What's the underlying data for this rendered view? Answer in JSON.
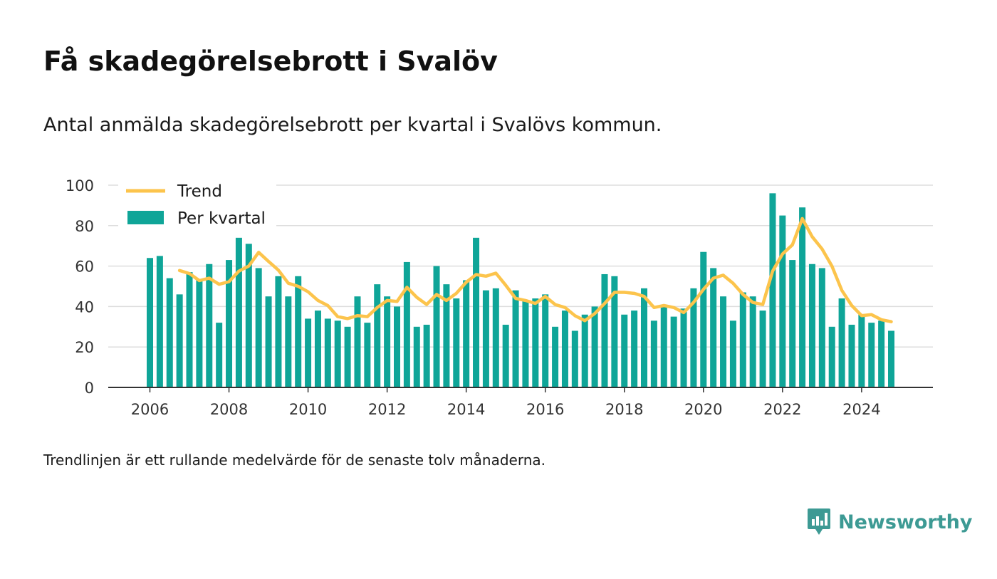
{
  "title": "Få skadegörelsebrott i Svalöv",
  "subtitle": "Antal anmälda skadegörelsebrott per kvartal i Svalövs kommun.",
  "footnote": "Trendlinjen är ett rullande medelvärde för de senaste tolv månaderna.",
  "brand": {
    "name": "Newsworthy",
    "icon": "newsworthy-logo-icon",
    "color": "#3d9a94"
  },
  "chart_data": {
    "type": "bar",
    "title": "Få skadegörelsebrott i Svalöv",
    "xlabel": "",
    "ylabel": "",
    "ylim": [
      0,
      100
    ],
    "yticks": [
      "0",
      "20",
      "40",
      "60",
      "80",
      "100"
    ],
    "xticks": [
      "2006",
      "2008",
      "2010",
      "2012",
      "2014",
      "2016",
      "2018",
      "2020",
      "2022",
      "2024"
    ],
    "grid": true,
    "legend_position": "top-left",
    "colors": {
      "bars": "#0fa598",
      "trend": "#fcc44c",
      "grid": "#dddddd",
      "axis": "#333333"
    },
    "legend": {
      "trend": "Trend",
      "bars": "Per kvartal"
    },
    "quarters_start": "2006 Q1",
    "series": [
      {
        "name": "Per kvartal",
        "type": "bar",
        "values": [
          64,
          65,
          54,
          46,
          57,
          53,
          61,
          32,
          63,
          74,
          71,
          59,
          45,
          55,
          45,
          55,
          34,
          38,
          34,
          33,
          30,
          45,
          32,
          51,
          45,
          40,
          62,
          30,
          31,
          60,
          51,
          44,
          53,
          74,
          48,
          49,
          31,
          48,
          43,
          44,
          46,
          30,
          38,
          28,
          36,
          40,
          56,
          55,
          36,
          38,
          49,
          33,
          40,
          35,
          39,
          49,
          67,
          59,
          45,
          33,
          47,
          45,
          38,
          96,
          85,
          63,
          89,
          61,
          59,
          30,
          44,
          31,
          36,
          32,
          33,
          28
        ]
      },
      {
        "name": "Trend",
        "type": "line",
        "values": [
          null,
          null,
          null,
          57.8,
          56.3,
          52.8,
          54.0,
          51.0,
          52.3,
          57.5,
          60.0,
          66.8,
          62.3,
          58.0,
          51.5,
          50.0,
          47.3,
          43.0,
          40.5,
          35.0,
          34.0,
          35.5,
          35.0,
          39.5,
          43.0,
          42.5,
          49.5,
          44.5,
          41.0,
          46.0,
          43.0,
          46.5,
          52.0,
          55.8,
          55.0,
          56.5,
          50.5,
          44.0,
          43.0,
          41.5,
          45.0,
          41.0,
          39.5,
          35.5,
          33.0,
          36.5,
          41.5,
          47.0,
          47.0,
          46.5,
          45.0,
          39.5,
          40.5,
          39.5,
          37.0,
          42.0,
          48.5,
          54.0,
          55.5,
          51.5,
          46.0,
          42.0,
          41.0,
          57.5,
          66.0,
          70.5,
          83.5,
          74.5,
          68.5,
          60.0,
          48.0,
          40.5,
          35.5,
          36.0,
          33.5,
          32.5
        ]
      }
    ]
  }
}
